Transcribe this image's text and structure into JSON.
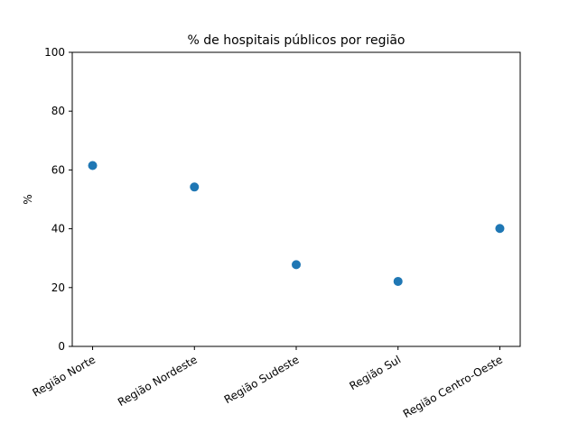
{
  "chart_data": {
    "type": "scatter",
    "title": "% de hospitais públicos por região",
    "xlabel": "",
    "ylabel": "%",
    "categories": [
      "Região Norte",
      "Região Nordeste",
      "Região Sudeste",
      "Região Sul",
      "Região Centro-Oeste"
    ],
    "values": [
      61.5,
      54.2,
      27.8,
      22.1,
      40.1
    ],
    "ylim": [
      0,
      100
    ],
    "yticks": [
      0,
      20,
      40,
      60,
      80,
      100
    ],
    "grid": false,
    "legend": "none",
    "marker_color": "#1f77b4"
  }
}
